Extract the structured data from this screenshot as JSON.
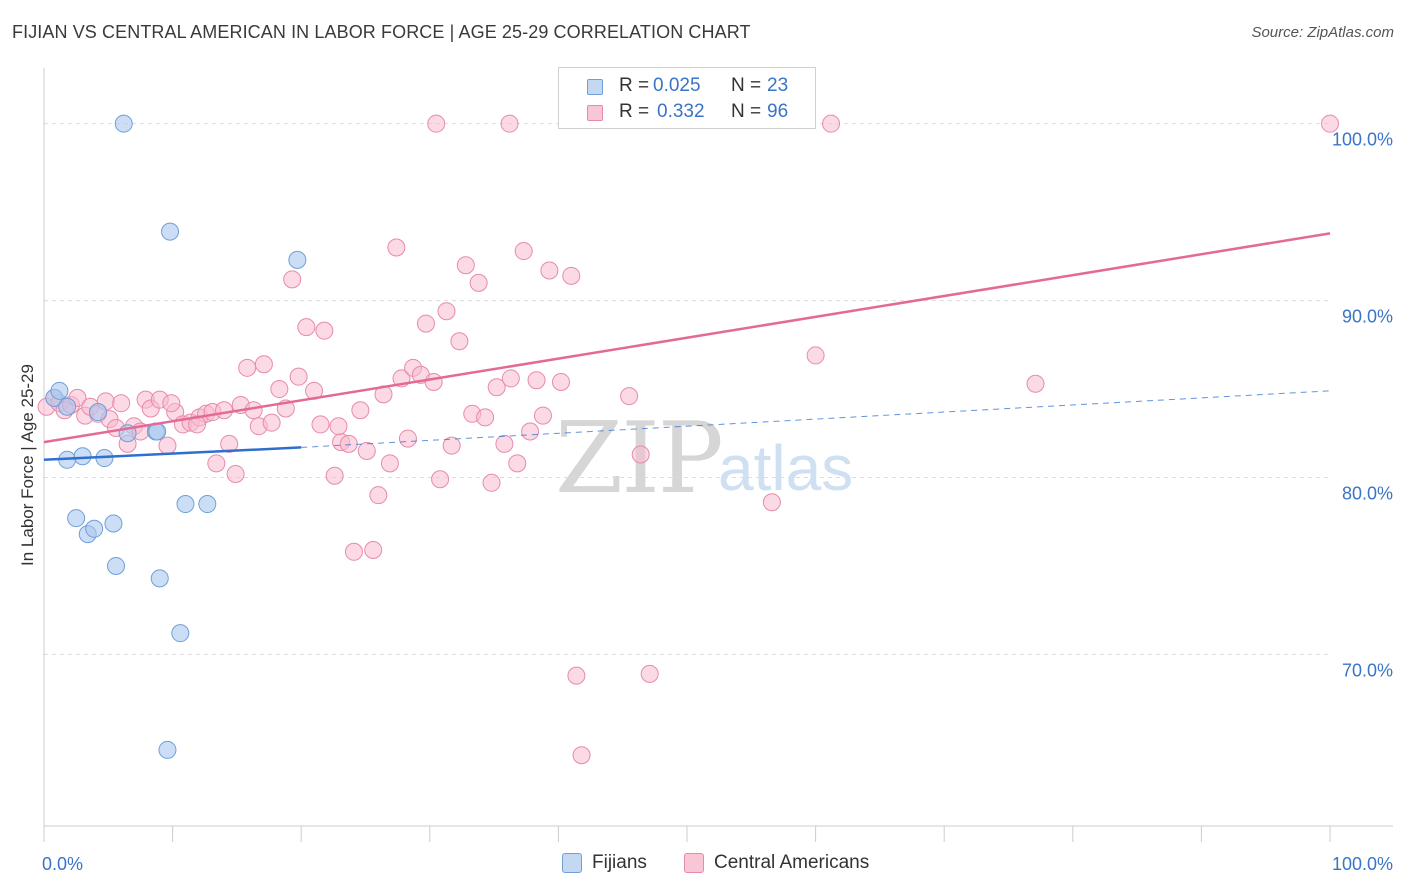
{
  "header": {
    "title": "FIJIAN VS CENTRAL AMERICAN IN LABOR FORCE | AGE 25-29 CORRELATION CHART",
    "source": "Source: ZipAtlas.com"
  },
  "legend": {
    "r_label": "R =",
    "n_label": "N =",
    "fijians": {
      "r": "0.025",
      "n": "23"
    },
    "central_americans": {
      "r": "0.332",
      "n": "96"
    }
  },
  "bottom_legend": {
    "fijians": "Fijians",
    "central_americans": "Central Americans"
  },
  "watermark": {
    "zip": "ZIP",
    "atlas": "atlas"
  },
  "colors": {
    "fijian_fill": "#aac8ee",
    "fijian_stroke": "#6f9fd8",
    "fijian_line": "#2e6fd0",
    "central_fill": "#f7bcd0",
    "central_stroke": "#e88aab",
    "central_line": "#e46a96",
    "axis_text": "#3a74c8",
    "grid": "#dcdcdc"
  },
  "chart_data": {
    "type": "scatter",
    "title": "FIJIAN VS CENTRAL AMERICAN IN LABOR FORCE | AGE 25-29 CORRELATION CHART",
    "xlabel": "",
    "ylabel": "In Labor Force | Age 25-29",
    "xlim": [
      0,
      100
    ],
    "ylim": [
      60.3,
      103.6
    ],
    "x_tick_labels": [
      {
        "value": 0,
        "label": "0.0%"
      },
      {
        "value": 100,
        "label": "100.0%"
      }
    ],
    "y_ticks": [
      {
        "value": 70,
        "label": "70.0%"
      },
      {
        "value": 80,
        "label": "80.0%"
      },
      {
        "value": 90,
        "label": "90.0%"
      },
      {
        "value": 100,
        "label": "100.0%"
      }
    ],
    "series": [
      {
        "name": "Fijians",
        "r": 0.025,
        "n": 23,
        "trend_solid": [
          [
            0,
            81.0
          ],
          [
            20,
            81.7
          ]
        ],
        "trend_dashed": [
          [
            20,
            81.7
          ],
          [
            100,
            84.9
          ]
        ],
        "points": [
          [
            0.8,
            84.5
          ],
          [
            1.2,
            84.9
          ],
          [
            1.8,
            84.0
          ],
          [
            4.2,
            83.7
          ],
          [
            6.5,
            82.5
          ],
          [
            8.7,
            82.6
          ],
          [
            1.8,
            81.0
          ],
          [
            3.0,
            81.2
          ],
          [
            4.7,
            81.1
          ],
          [
            6.2,
            100.0
          ],
          [
            9.8,
            93.9
          ],
          [
            19.7,
            92.3
          ],
          [
            2.5,
            77.7
          ],
          [
            3.4,
            76.8
          ],
          [
            3.9,
            77.1
          ],
          [
            5.4,
            77.4
          ],
          [
            5.6,
            75.0
          ],
          [
            11.0,
            78.5
          ],
          [
            12.7,
            78.5
          ],
          [
            9.0,
            74.3
          ],
          [
            10.6,
            71.2
          ],
          [
            9.6,
            64.6
          ],
          [
            8.8,
            82.6
          ]
        ]
      },
      {
        "name": "Central Americans",
        "r": 0.332,
        "n": 96,
        "trend_solid": [
          [
            0,
            82.0
          ],
          [
            100,
            93.8
          ]
        ],
        "points": [
          [
            0.2,
            84.0
          ],
          [
            0.8,
            84.5
          ],
          [
            1.2,
            84.2
          ],
          [
            1.6,
            83.8
          ],
          [
            2.1,
            84.1
          ],
          [
            2.6,
            84.5
          ],
          [
            3.2,
            83.5
          ],
          [
            3.6,
            84.0
          ],
          [
            4.2,
            83.6
          ],
          [
            4.8,
            84.3
          ],
          [
            5.1,
            83.3
          ],
          [
            5.6,
            82.8
          ],
          [
            6.0,
            84.2
          ],
          [
            6.5,
            81.9
          ],
          [
            7.0,
            82.9
          ],
          [
            7.5,
            82.6
          ],
          [
            7.9,
            84.4
          ],
          [
            8.3,
            83.9
          ],
          [
            9.0,
            84.4
          ],
          [
            9.6,
            81.8
          ],
          [
            10.2,
            83.7
          ],
          [
            10.8,
            83.0
          ],
          [
            11.4,
            83.1
          ],
          [
            12.1,
            83.4
          ],
          [
            12.6,
            83.6
          ],
          [
            13.1,
            83.7
          ],
          [
            13.4,
            80.8
          ],
          [
            14.0,
            83.8
          ],
          [
            14.4,
            81.9
          ],
          [
            14.9,
            80.2
          ],
          [
            15.3,
            84.1
          ],
          [
            15.8,
            86.2
          ],
          [
            16.3,
            83.8
          ],
          [
            16.7,
            82.9
          ],
          [
            17.1,
            86.4
          ],
          [
            17.7,
            83.1
          ],
          [
            18.3,
            85.0
          ],
          [
            18.8,
            83.9
          ],
          [
            19.3,
            91.2
          ],
          [
            19.8,
            85.7
          ],
          [
            20.4,
            88.5
          ],
          [
            21.0,
            84.9
          ],
          [
            21.5,
            83.0
          ],
          [
            21.8,
            88.3
          ],
          [
            22.6,
            80.1
          ],
          [
            23.1,
            82.0
          ],
          [
            23.7,
            81.9
          ],
          [
            24.1,
            75.8
          ],
          [
            24.6,
            83.8
          ],
          [
            25.1,
            81.5
          ],
          [
            25.6,
            75.9
          ],
          [
            26.0,
            79.0
          ],
          [
            26.4,
            84.7
          ],
          [
            26.9,
            80.8
          ],
          [
            27.4,
            93.0
          ],
          [
            27.8,
            85.6
          ],
          [
            28.3,
            82.2
          ],
          [
            28.7,
            86.2
          ],
          [
            29.3,
            85.8
          ],
          [
            29.7,
            88.7
          ],
          [
            30.3,
            85.4
          ],
          [
            30.8,
            79.9
          ],
          [
            31.3,
            89.4
          ],
          [
            31.7,
            81.8
          ],
          [
            32.3,
            87.7
          ],
          [
            32.8,
            92.0
          ],
          [
            33.3,
            83.6
          ],
          [
            33.8,
            91.0
          ],
          [
            34.3,
            83.4
          ],
          [
            34.8,
            79.7
          ],
          [
            35.2,
            85.1
          ],
          [
            35.8,
            81.9
          ],
          [
            36.3,
            85.6
          ],
          [
            36.8,
            80.8
          ],
          [
            37.3,
            92.8
          ],
          [
            37.8,
            82.6
          ],
          [
            38.3,
            85.5
          ],
          [
            38.8,
            83.5
          ],
          [
            39.3,
            91.7
          ],
          [
            40.2,
            85.4
          ],
          [
            41.0,
            91.4
          ],
          [
            36.2,
            100.0
          ],
          [
            30.5,
            100.0
          ],
          [
            61.2,
            100.0
          ],
          [
            100.0,
            100.0
          ],
          [
            45.5,
            84.6
          ],
          [
            46.4,
            81.3
          ],
          [
            56.6,
            78.6
          ],
          [
            60.0,
            86.9
          ],
          [
            77.1,
            85.3
          ],
          [
            41.4,
            68.8
          ],
          [
            47.1,
            68.9
          ],
          [
            41.8,
            64.3
          ],
          [
            9.9,
            84.2
          ],
          [
            22.9,
            82.9
          ],
          [
            11.9,
            83.0
          ]
        ]
      }
    ]
  }
}
